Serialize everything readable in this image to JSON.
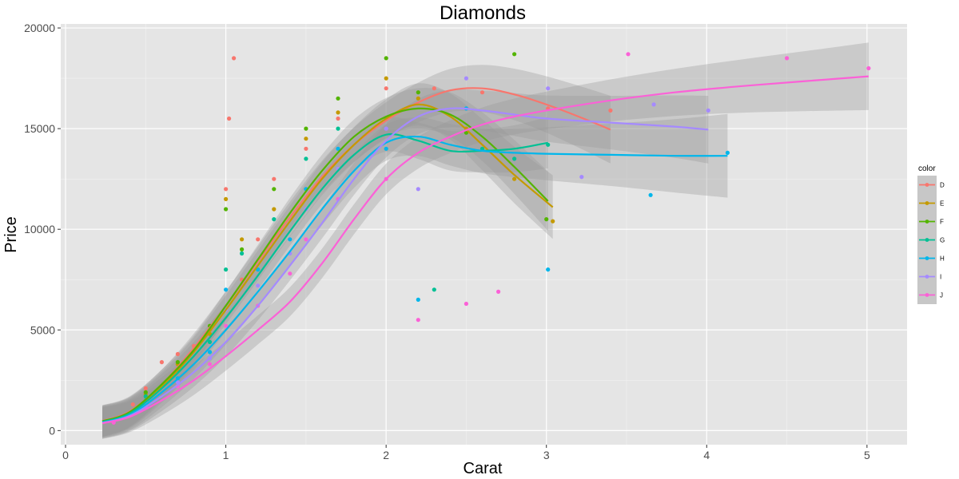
{
  "chart_data": {
    "type": "scatter",
    "title": "Diamonds",
    "xlabel": "Carat",
    "ylabel": "Price",
    "xlim": [
      -0.03,
      5.25
    ],
    "ylim": [
      -700,
      20200
    ],
    "x_ticks": [
      0,
      1,
      2,
      3,
      4,
      5
    ],
    "y_ticks": [
      0,
      5000,
      10000,
      15000,
      20000
    ],
    "x_tick_labels": [
      "0",
      "1",
      "2",
      "3",
      "4",
      "5"
    ],
    "y_tick_labels": [
      "0",
      "5000",
      "10000",
      "15000",
      "20000"
    ],
    "grid": true,
    "legend": {
      "title": "color",
      "placement": "right"
    },
    "series": [
      {
        "name": "D",
        "color": "#F8766D",
        "points": [
          [
            0.3,
            550
          ],
          [
            0.42,
            1300
          ],
          [
            0.5,
            2100
          ],
          [
            0.6,
            3400
          ],
          [
            0.7,
            3800
          ],
          [
            0.8,
            4200
          ],
          [
            0.9,
            5000
          ],
          [
            1.0,
            12000
          ],
          [
            1.02,
            15500
          ],
          [
            1.05,
            18500
          ],
          [
            1.1,
            7500
          ],
          [
            1.2,
            9500
          ],
          [
            1.3,
            12500
          ],
          [
            1.5,
            14000
          ],
          [
            1.7,
            15500
          ],
          [
            2.0,
            17000
          ],
          [
            2.3,
            17000
          ],
          [
            2.6,
            16800
          ],
          [
            3.01,
            16000
          ],
          [
            3.4,
            15900
          ]
        ],
        "smooth": [
          [
            0.23,
            480
          ],
          [
            0.4,
            950
          ],
          [
            0.6,
            2300
          ],
          [
            0.8,
            4100
          ],
          [
            1.0,
            6200
          ],
          [
            1.2,
            8400
          ],
          [
            1.4,
            10600
          ],
          [
            1.6,
            12600
          ],
          [
            1.8,
            14200
          ],
          [
            2.0,
            15400
          ],
          [
            2.2,
            16300
          ],
          [
            2.4,
            16900
          ],
          [
            2.6,
            17000
          ],
          [
            2.8,
            16700
          ],
          [
            3.0,
            16200
          ],
          [
            3.2,
            15600
          ],
          [
            3.4,
            14950
          ]
        ],
        "band": [
          600,
          1500
        ]
      },
      {
        "name": "E",
        "color": "#C49A00",
        "points": [
          [
            0.3,
            500
          ],
          [
            0.5,
            1800
          ],
          [
            0.7,
            3300
          ],
          [
            0.9,
            4800
          ],
          [
            1.0,
            11500
          ],
          [
            1.1,
            9500
          ],
          [
            1.3,
            11000
          ],
          [
            1.5,
            14500
          ],
          [
            1.7,
            15800
          ],
          [
            2.0,
            17500
          ],
          [
            2.2,
            16500
          ],
          [
            2.5,
            15000
          ],
          [
            2.8,
            12500
          ],
          [
            3.04,
            10400
          ]
        ],
        "smooth": [
          [
            0.23,
            460
          ],
          [
            0.4,
            900
          ],
          [
            0.6,
            2200
          ],
          [
            0.8,
            3900
          ],
          [
            1.0,
            6000
          ],
          [
            1.2,
            8200
          ],
          [
            1.4,
            10400
          ],
          [
            1.6,
            12500
          ],
          [
            1.8,
            14200
          ],
          [
            2.0,
            15500
          ],
          [
            2.2,
            16200
          ],
          [
            2.4,
            15600
          ],
          [
            2.6,
            14200
          ],
          [
            2.8,
            12700
          ],
          [
            3.04,
            11100
          ]
        ],
        "band": [
          600,
          1400
        ]
      },
      {
        "name": "F",
        "color": "#53B400",
        "points": [
          [
            0.3,
            520
          ],
          [
            0.5,
            1900
          ],
          [
            0.7,
            3400
          ],
          [
            0.9,
            5200
          ],
          [
            1.0,
            11000
          ],
          [
            1.1,
            9000
          ],
          [
            1.3,
            12000
          ],
          [
            1.5,
            15000
          ],
          [
            1.7,
            16500
          ],
          [
            2.0,
            18500
          ],
          [
            2.2,
            16800
          ],
          [
            2.5,
            14800
          ],
          [
            2.8,
            18700
          ],
          [
            3.0,
            10500
          ]
        ],
        "smooth": [
          [
            0.23,
            470
          ],
          [
            0.4,
            920
          ],
          [
            0.6,
            2300
          ],
          [
            0.8,
            4000
          ],
          [
            1.0,
            6200
          ],
          [
            1.2,
            8500
          ],
          [
            1.4,
            10800
          ],
          [
            1.6,
            12900
          ],
          [
            1.8,
            14600
          ],
          [
            2.0,
            15600
          ],
          [
            2.2,
            16000
          ],
          [
            2.4,
            15700
          ],
          [
            2.6,
            14600
          ],
          [
            2.8,
            13100
          ],
          [
            3.01,
            11400
          ]
        ],
        "band": [
          600,
          1300
        ]
      },
      {
        "name": "G",
        "color": "#00C094",
        "points": [
          [
            0.3,
            480
          ],
          [
            0.5,
            1700
          ],
          [
            0.7,
            3000
          ],
          [
            0.9,
            4400
          ],
          [
            1.0,
            8000
          ],
          [
            1.1,
            8800
          ],
          [
            1.3,
            10500
          ],
          [
            1.5,
            13500
          ],
          [
            1.7,
            15000
          ],
          [
            2.0,
            15500
          ],
          [
            2.3,
            7000
          ],
          [
            2.6,
            14000
          ],
          [
            2.8,
            13500
          ],
          [
            3.01,
            14200
          ]
        ],
        "smooth": [
          [
            0.23,
            430
          ],
          [
            0.4,
            850
          ],
          [
            0.6,
            2100
          ],
          [
            0.8,
            3700
          ],
          [
            1.0,
            5600
          ],
          [
            1.2,
            7700
          ],
          [
            1.4,
            9900
          ],
          [
            1.6,
            12000
          ],
          [
            1.8,
            13700
          ],
          [
            2.0,
            14700
          ],
          [
            2.2,
            14400
          ],
          [
            2.4,
            13900
          ],
          [
            2.6,
            13900
          ],
          [
            2.8,
            14000
          ],
          [
            3.01,
            14300
          ]
        ],
        "band": [
          600,
          1100
        ]
      },
      {
        "name": "H",
        "color": "#00B6EB",
        "points": [
          [
            0.3,
            450
          ],
          [
            0.5,
            1500
          ],
          [
            0.7,
            2600
          ],
          [
            0.9,
            3900
          ],
          [
            1.0,
            7000
          ],
          [
            1.2,
            8000
          ],
          [
            1.4,
            9500
          ],
          [
            1.5,
            12000
          ],
          [
            1.7,
            14000
          ],
          [
            2.0,
            14000
          ],
          [
            2.2,
            6500
          ],
          [
            2.5,
            16000
          ],
          [
            3.01,
            8000
          ],
          [
            3.65,
            11700
          ],
          [
            4.13,
            13800
          ]
        ],
        "smooth": [
          [
            0.23,
            400
          ],
          [
            0.4,
            780
          ],
          [
            0.6,
            1900
          ],
          [
            0.8,
            3300
          ],
          [
            1.0,
            5000
          ],
          [
            1.2,
            6900
          ],
          [
            1.4,
            8900
          ],
          [
            1.6,
            11000
          ],
          [
            1.8,
            12900
          ],
          [
            2.0,
            14300
          ],
          [
            2.2,
            14600
          ],
          [
            2.4,
            14200
          ],
          [
            2.6,
            13900
          ],
          [
            2.8,
            13800
          ],
          [
            3.0,
            13750
          ],
          [
            3.4,
            13700
          ],
          [
            3.8,
            13650
          ],
          [
            4.13,
            13650
          ]
        ],
        "band": [
          600,
          1900
        ]
      },
      {
        "name": "I",
        "color": "#A58AFF",
        "points": [
          [
            0.3,
            420
          ],
          [
            0.5,
            1400
          ],
          [
            0.7,
            2400
          ],
          [
            0.9,
            3600
          ],
          [
            1.0,
            6000
          ],
          [
            1.2,
            7200
          ],
          [
            1.4,
            8800
          ],
          [
            1.5,
            11000
          ],
          [
            1.7,
            13000
          ],
          [
            2.0,
            15000
          ],
          [
            2.2,
            12000
          ],
          [
            2.5,
            17500
          ],
          [
            3.01,
            17000
          ],
          [
            3.22,
            12600
          ],
          [
            3.67,
            16200
          ],
          [
            4.01,
            15900
          ]
        ],
        "smooth": [
          [
            0.23,
            380
          ],
          [
            0.4,
            730
          ],
          [
            0.6,
            1700
          ],
          [
            0.8,
            2900
          ],
          [
            1.0,
            4400
          ],
          [
            1.2,
            6200
          ],
          [
            1.4,
            8200
          ],
          [
            1.6,
            10300
          ],
          [
            1.8,
            12500
          ],
          [
            2.0,
            14400
          ],
          [
            2.2,
            15600
          ],
          [
            2.4,
            16000
          ],
          [
            2.6,
            15900
          ],
          [
            2.8,
            15700
          ],
          [
            3.0,
            15500
          ],
          [
            3.4,
            15300
          ],
          [
            3.8,
            15100
          ],
          [
            4.01,
            14950
          ]
        ],
        "band": [
          600,
          1500
        ]
      },
      {
        "name": "J",
        "color": "#FB61D7",
        "points": [
          [
            0.3,
            400
          ],
          [
            0.5,
            1200
          ],
          [
            0.7,
            2200
          ],
          [
            0.9,
            3300
          ],
          [
            1.0,
            5200
          ],
          [
            1.2,
            6200
          ],
          [
            1.4,
            7800
          ],
          [
            1.5,
            9500
          ],
          [
            1.7,
            11500
          ],
          [
            2.0,
            12500
          ],
          [
            2.2,
            5500
          ],
          [
            2.5,
            6300
          ],
          [
            2.7,
            6900
          ],
          [
            3.51,
            18700
          ],
          [
            4.5,
            18500
          ],
          [
            5.01,
            18000
          ]
        ],
        "smooth": [
          [
            0.23,
            360
          ],
          [
            0.4,
            680
          ],
          [
            0.6,
            1500
          ],
          [
            0.8,
            2500
          ],
          [
            1.0,
            3700
          ],
          [
            1.2,
            5000
          ],
          [
            1.4,
            6400
          ],
          [
            1.6,
            8300
          ],
          [
            1.8,
            10500
          ],
          [
            2.0,
            12500
          ],
          [
            2.2,
            13800
          ],
          [
            2.4,
            14600
          ],
          [
            2.6,
            15200
          ],
          [
            2.8,
            15600
          ],
          [
            3.0,
            15900
          ],
          [
            3.4,
            16400
          ],
          [
            3.8,
            16800
          ],
          [
            4.2,
            17100
          ],
          [
            4.6,
            17350
          ],
          [
            5.01,
            17600
          ]
        ],
        "band": [
          600,
          1500
        ]
      }
    ]
  }
}
